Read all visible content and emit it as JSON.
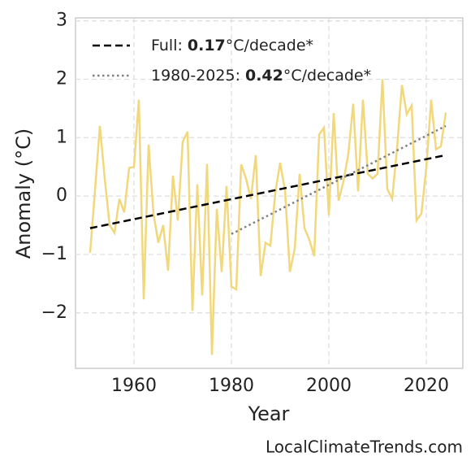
{
  "chart_data": {
    "type": "line",
    "x_label": "Year",
    "y_label": "Anomaly (°C)",
    "watermark": "LocalClimateTrends.com",
    "xlim": [
      1948,
      2027.5
    ],
    "ylim": [
      -2.95,
      3.05
    ],
    "xticks": [
      1960,
      1980,
      2000,
      2020
    ],
    "yticks": [
      {
        "value": -2,
        "label": "−2"
      },
      {
        "value": -1,
        "label": "−1"
      },
      0,
      1,
      2,
      3
    ],
    "grid": true,
    "legend": "upper left",
    "series": [
      {
        "color": "#f2d87c",
        "style": "solid",
        "x": [
          1951,
          1952,
          1953,
          1954,
          1955,
          1956,
          1957,
          1958,
          1959,
          1960,
          1961,
          1962,
          1963,
          1964,
          1965,
          1966,
          1967,
          1968,
          1969,
          1970,
          1971,
          1972,
          1973,
          1974,
          1975,
          1976,
          1977,
          1978,
          1979,
          1980,
          1981,
          1982,
          1983,
          1984,
          1985,
          1986,
          1987,
          1988,
          1989,
          1990,
          1991,
          1992,
          1993,
          1994,
          1995,
          1996,
          1997,
          1998,
          1999,
          2000,
          2001,
          2002,
          2003,
          2004,
          2005,
          2006,
          2007,
          2008,
          2009,
          2010,
          2011,
          2012,
          2013,
          2014,
          2015,
          2016,
          2017,
          2018,
          2019,
          2020,
          2021,
          2022,
          2023,
          2024
        ],
        "values": [
          -0.97,
          0.1,
          1.2,
          0.3,
          -0.5,
          -0.63,
          -0.05,
          -0.28,
          0.48,
          0.5,
          1.65,
          -1.77,
          0.88,
          -0.3,
          -0.8,
          -0.5,
          -1.28,
          0.35,
          -0.42,
          0.93,
          1.1,
          -1.97,
          0.2,
          -1.7,
          0.55,
          -2.72,
          -0.22,
          -1.3,
          0.17,
          -1.55,
          -1.6,
          0.54,
          0.3,
          -0.05,
          0.7,
          -1.37,
          -0.8,
          -0.85,
          0.05,
          0.57,
          0.1,
          -1.3,
          -0.9,
          0.38,
          -0.55,
          -0.75,
          -1.03,
          1.05,
          1.17,
          -0.33,
          1.42,
          -0.08,
          0.25,
          0.72,
          1.58,
          0.08,
          1.65,
          0.38,
          0.3,
          0.38,
          2.0,
          0.12,
          -0.05,
          0.82,
          1.9,
          1.4,
          1.55,
          -0.42,
          -0.3,
          0.48,
          1.65,
          0.8,
          0.85,
          1.43
        ]
      },
      {
        "name": "Full:",
        "trend": "0.17",
        "unit": "°C/decade*",
        "color": "#000000",
        "style": "dashed",
        "x": [
          1951,
          2024
        ],
        "values": [
          -0.55,
          0.7
        ]
      },
      {
        "name": "1980-2025:",
        "trend": "0.42",
        "unit": "°C/decade*",
        "color": "#808080",
        "style": "dotted",
        "x": [
          1980,
          2024
        ],
        "values": [
          -0.65,
          1.2
        ]
      }
    ]
  }
}
